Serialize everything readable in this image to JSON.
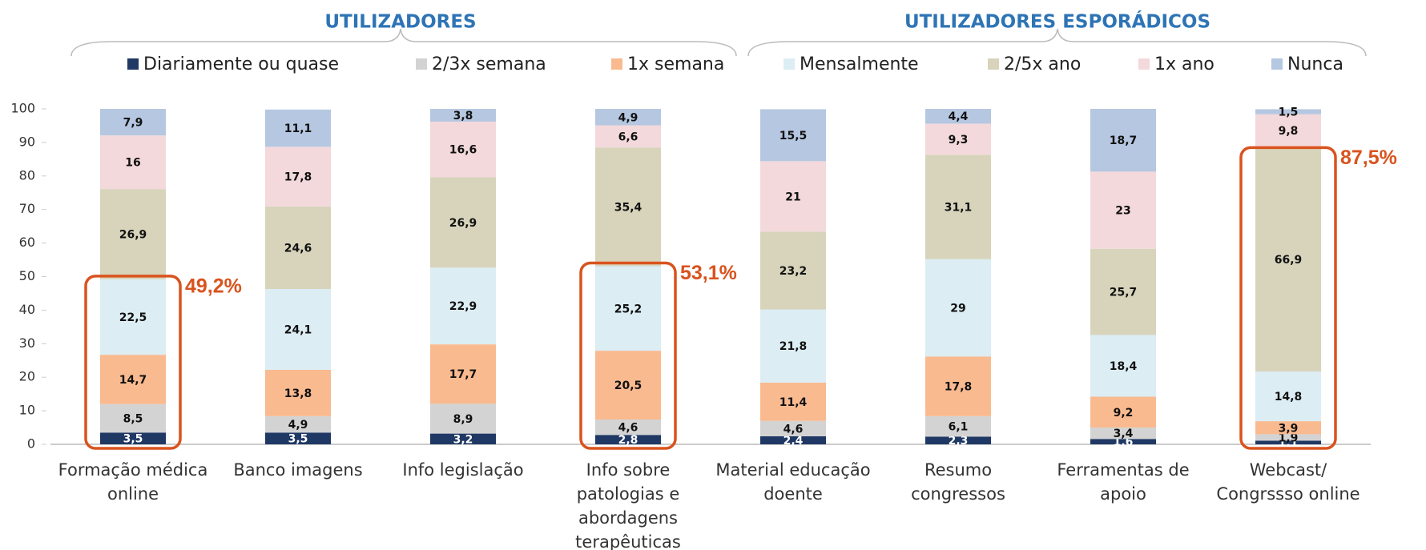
{
  "chart_data": {
    "type": "stacked_bar",
    "groups": [
      {
        "label": "UTILIZADORES"
      },
      {
        "label": "UTILIZADORES ESPORÁDICOS"
      }
    ],
    "categories": [
      "Formação médica online",
      "Banco imagens",
      "Info legislação",
      "Info sobre patologias e abordagens terapêuticas",
      "Material educação doente",
      "Resumo congressos",
      "Ferramentas de apoio",
      "Webcast/ Congrssso online"
    ],
    "series": [
      {
        "name": "Diariamente ou quase",
        "color": "#1f3864",
        "values": [
          3.5,
          3.5,
          3.2,
          2.8,
          2.4,
          2.3,
          1.6,
          1.1
        ],
        "value_labels": [
          "3,5",
          "3,5",
          "3,2",
          "2,8",
          "2,4",
          "2,3",
          "1,6",
          "1,1"
        ]
      },
      {
        "name": "2/3x semana",
        "color": "#d3d3d3",
        "values": [
          8.5,
          4.9,
          8.9,
          4.6,
          4.6,
          6.1,
          3.4,
          1.9
        ],
        "value_labels": [
          "8,5",
          "4,9",
          "8,9",
          "4,6",
          "4,6",
          "6,1",
          "3,4",
          "1,9"
        ]
      },
      {
        "name": "1x semana",
        "color": "#f9ba8f",
        "values": [
          14.7,
          13.8,
          17.7,
          20.5,
          11.4,
          17.8,
          9.2,
          3.9
        ],
        "value_labels": [
          "14,7",
          "13,8",
          "17,7",
          "20,5",
          "11,4",
          "17,8",
          "9,2",
          "3,9"
        ]
      },
      {
        "name": "Mensalmente",
        "color": "#dcedf4",
        "values": [
          22.5,
          24.1,
          22.9,
          25.2,
          21.8,
          29,
          18.4,
          14.8
        ],
        "value_labels": [
          "22,5",
          "24,1",
          "22,9",
          "25,2",
          "21,8",
          "29",
          "18,4",
          "14,8"
        ]
      },
      {
        "name": "2/5x ano",
        "color": "#d7d4bb",
        "values": [
          26.9,
          24.6,
          26.9,
          35.4,
          23.2,
          31.1,
          25.7,
          66.9
        ],
        "value_labels": [
          "26,9",
          "24,6",
          "26,9",
          "35,4",
          "23,2",
          "31,1",
          "25,7",
          "66,9"
        ]
      },
      {
        "name": "1x ano",
        "color": "#f3d9db",
        "values": [
          16,
          17.8,
          16.6,
          6.6,
          21,
          9.3,
          23,
          9.8
        ],
        "value_labels": [
          "16",
          "17,8",
          "16,6",
          "6,6",
          "21",
          "9,3",
          "23",
          "9,8"
        ]
      },
      {
        "name": "Nunca",
        "color": "#b5c7e1",
        "values": [
          7.9,
          11.1,
          3.8,
          4.9,
          15.5,
          4.4,
          18.7,
          1.5
        ],
        "value_labels": [
          "7,9",
          "11,1",
          "3,8",
          "4,9",
          "15,5",
          "4,4",
          "18,7",
          "1,5"
        ]
      }
    ],
    "ylim": [
      0,
      100
    ],
    "yticks": [
      0,
      10,
      20,
      30,
      40,
      50,
      60,
      70,
      80,
      90,
      100
    ],
    "annotations": [
      {
        "text": "49,2%",
        "value": 49.2,
        "category": "Formação médica online",
        "color": "#d9531e"
      },
      {
        "text": "53,1%",
        "value": 53.1,
        "category": "Info sobre patologias e abordagens terapêuticas",
        "color": "#d9531e"
      },
      {
        "text": "87,5%",
        "value": 87.5,
        "category": "Webcast/ Congrssso online",
        "color": "#d9531e"
      }
    ]
  }
}
